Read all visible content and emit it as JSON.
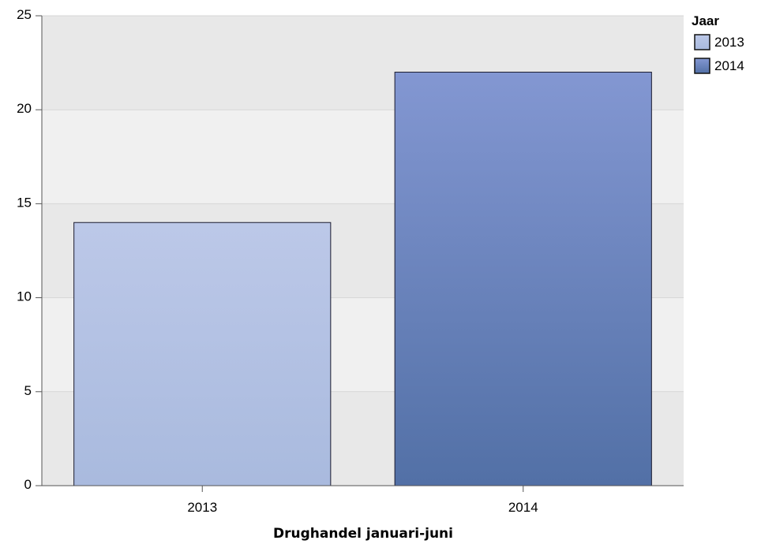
{
  "chart_data": {
    "type": "bar",
    "categories": [
      "2013",
      "2014"
    ],
    "values": [
      14,
      22
    ],
    "title": "",
    "xlabel": "Drughandel januari-juni",
    "ylabel": "",
    "ylim": [
      0,
      25
    ],
    "yticks": [
      "0",
      "5",
      "10",
      "15",
      "20",
      "25"
    ],
    "grid": true,
    "legend": {
      "title": "Jaar",
      "placement": "top-right",
      "entries": [
        "2013",
        "2014"
      ]
    },
    "colors": {
      "2013": {
        "top": "#bcc8e8",
        "bottom": "#a9bade"
      },
      "2014": {
        "top": "#8397d2",
        "bottom": "#5270a6"
      },
      "band_dark": "#e8e8e8",
      "band_light": "#f0f0f0",
      "bar_stroke": "#1a1a2e"
    }
  }
}
